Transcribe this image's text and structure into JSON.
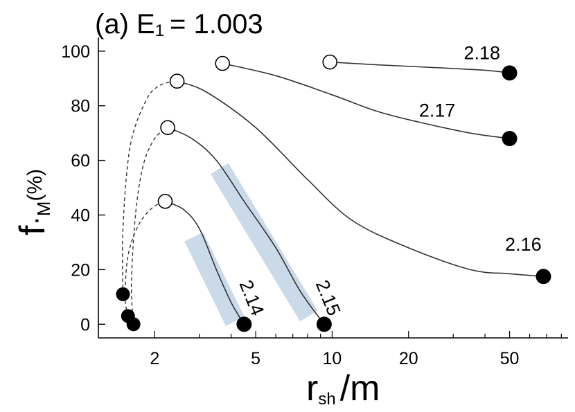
{
  "chart_data": {
    "type": "line",
    "title": "(a) E",
    "title_subscript": "1",
    "title_value": "= 1.003",
    "xlabel_main": "r",
    "xlabel_sub": "sh",
    "xlabel_rest": "/m",
    "ylabel_main": "f",
    "ylabel_dot": "·",
    "ylabel_sub": "M",
    "ylabel_rest": "(%)",
    "xscale": "log",
    "xlim": [
      1.2,
      85
    ],
    "ylim": [
      -5,
      103
    ],
    "xticks": [
      2,
      5,
      10,
      20,
      50
    ],
    "xtick_labels": [
      "2",
      "5",
      "10",
      "20",
      "50"
    ],
    "yticks": [
      0,
      20,
      40,
      60,
      80,
      100
    ],
    "ytick_labels": [
      "0",
      "20",
      "40",
      "60",
      "80",
      "100"
    ],
    "grid": false,
    "series": [
      {
        "name": "2.14",
        "dashed_branch": [
          [
            1.57,
            3
          ],
          [
            1.53,
            10
          ],
          [
            1.57,
            25
          ],
          [
            1.72,
            36
          ],
          [
            1.95,
            42.5
          ],
          [
            2.2,
            45
          ]
        ],
        "solid_branch": [
          [
            2.2,
            45
          ],
          [
            2.6,
            42
          ],
          [
            3.0,
            35
          ],
          [
            3.5,
            20
          ],
          [
            4.0,
            8
          ],
          [
            4.5,
            0
          ]
        ],
        "open_point": [
          2.2,
          45
        ],
        "filled_point": [
          4.5,
          0
        ],
        "highlight_band": [
          [
            2.85,
            32
          ],
          [
            4.15,
            1
          ]
        ],
        "label_position": [
          4.3,
          15
        ]
      },
      {
        "name": "2.15",
        "dashed_branch": [
          [
            1.65,
            0
          ],
          [
            1.62,
            15
          ],
          [
            1.68,
            40
          ],
          [
            1.8,
            58
          ],
          [
            2.0,
            68
          ],
          [
            2.25,
            72
          ]
        ],
        "solid_branch": [
          [
            2.25,
            72
          ],
          [
            2.8,
            68
          ],
          [
            3.5,
            60
          ],
          [
            4.5,
            45
          ],
          [
            6.0,
            28
          ],
          [
            7.5,
            12
          ],
          [
            9.3,
            0
          ]
        ],
        "open_point": [
          2.25,
          72
        ],
        "filled_point": [
          9.3,
          0
        ],
        "highlight_band": [
          [
            3.6,
            57
          ],
          [
            8.1,
            3
          ]
        ],
        "label_position": [
          8.6,
          15
        ]
      },
      {
        "name": "2.16",
        "dashed_branch": [
          [
            1.5,
            11
          ],
          [
            1.5,
            35
          ],
          [
            1.6,
            65
          ],
          [
            1.85,
            82
          ],
          [
            2.1,
            87.5
          ],
          [
            2.45,
            89
          ]
        ],
        "solid_branch": [
          [
            2.45,
            89
          ],
          [
            3.2,
            85
          ],
          [
            5.0,
            72
          ],
          [
            8.0,
            53
          ],
          [
            12,
            38
          ],
          [
            20,
            28
          ],
          [
            35,
            20
          ],
          [
            50,
            18.5
          ],
          [
            68,
            17.5
          ]
        ],
        "open_point": [
          2.45,
          89
        ],
        "filled_point": [
          68,
          17.5
        ],
        "label_position": [
          48,
          27
        ]
      },
      {
        "name": "2.17",
        "solid_branch": [
          [
            3.7,
            95.5
          ],
          [
            6,
            91
          ],
          [
            10,
            84
          ],
          [
            15,
            78
          ],
          [
            22,
            74
          ],
          [
            35,
            70
          ],
          [
            50,
            68
          ]
        ],
        "open_point": [
          3.7,
          95.5
        ],
        "filled_point": [
          50,
          68
        ],
        "label_position": [
          22,
          76
        ]
      },
      {
        "name": "2.18",
        "solid_branch": [
          [
            9.8,
            96
          ],
          [
            15,
            95
          ],
          [
            25,
            94
          ],
          [
            40,
            93
          ],
          [
            50,
            92
          ]
        ],
        "open_point": [
          9.8,
          96
        ],
        "filled_point": [
          50,
          92
        ],
        "label_position": [
          33,
          97
        ]
      }
    ]
  }
}
